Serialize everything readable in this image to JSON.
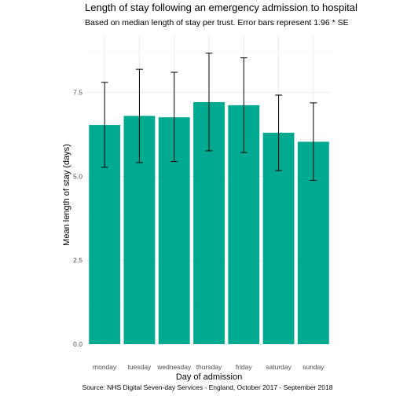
{
  "chart_data": {
    "type": "bar",
    "title": "Length of stay following an emergency admission to hospital",
    "subtitle": "Based on median length of stay per trust. Error bars represent 1.96 * SE",
    "xlabel": "Day of admission",
    "ylabel": "Mean length of stay (days)",
    "caption": "Source: NHS Digital Seven-day Services - England, October 2017 - September 2018",
    "categories": [
      "monday",
      "tuesday",
      "wednesday",
      "thursday",
      "friday",
      "saturday",
      "sunday"
    ],
    "values": [
      6.53,
      6.8,
      6.76,
      7.21,
      7.12,
      6.3,
      6.03
    ],
    "error_low": [
      5.27,
      5.41,
      5.44,
      5.76,
      5.71,
      5.17,
      4.88
    ],
    "error_high": [
      7.8,
      8.19,
      8.1,
      8.67,
      8.53,
      7.42,
      7.19
    ],
    "ylim": [
      0,
      9.2
    ],
    "yticks": [
      0,
      2.5,
      5,
      7.5
    ],
    "ytick_labels": [
      "0.0",
      "2.5",
      "5.0",
      "7.5"
    ],
    "bar_color": "#00AA90",
    "errorbar_color": "#000000",
    "grid": true,
    "legend": "none"
  }
}
